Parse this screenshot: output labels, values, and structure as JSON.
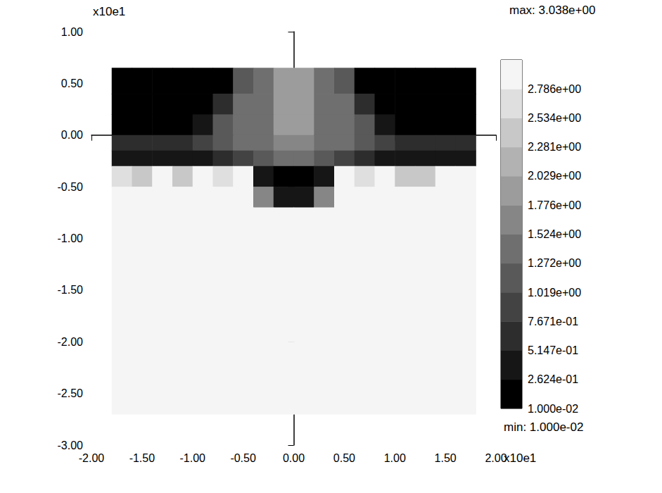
{
  "chart_data": {
    "type": "heatmap",
    "x_label": "x10e1",
    "y_label": "x10e1",
    "xlim": [
      -2,
      2
    ],
    "xticks": [
      {
        "value": -2,
        "label": "-2.00"
      },
      {
        "value": -1.5,
        "label": "-1.50"
      },
      {
        "value": -1,
        "label": "-1.00"
      },
      {
        "value": -0.5,
        "label": "-0.50"
      },
      {
        "value": 0,
        "label": "0.00"
      },
      {
        "value": 0.5,
        "label": "0.50"
      },
      {
        "value": 1,
        "label": "1.00"
      },
      {
        "value": 1.5,
        "label": "1.50"
      },
      {
        "value": 2,
        "label": "2.00"
      }
    ],
    "ylim": [
      -3,
      1
    ],
    "yticks": [
      {
        "value": 1,
        "label": "1.00"
      },
      {
        "value": 0.5,
        "label": "0.50"
      },
      {
        "value": 0,
        "label": "0.00"
      },
      {
        "value": -0.5,
        "label": "-0.50"
      },
      {
        "value": -1,
        "label": "-1.00"
      },
      {
        "value": -1.5,
        "label": "-1.50"
      },
      {
        "value": -2,
        "label": "-2.00"
      },
      {
        "value": -2.5,
        "label": "-2.50"
      },
      {
        "value": -3,
        "label": "-3.00"
      }
    ],
    "grid": false,
    "x_edges": [
      -1.8,
      -1.6,
      -1.4,
      -1.2,
      -1.0,
      -0.8,
      -0.6,
      -0.4,
      -0.2,
      0.0,
      0.2,
      0.4,
      0.6,
      0.8,
      1.0,
      1.2,
      1.4,
      1.6,
      1.8
    ],
    "y_edges": [
      0.65,
      0.4,
      0.2,
      0.0,
      -0.15,
      -0.3,
      -0.5,
      -0.7,
      -1.0,
      -1.5,
      -2.0,
      -2.7
    ],
    "cells": [
      [
        0.01,
        0.01,
        0.01,
        0.01,
        0.01,
        0.01,
        1.2,
        1.4,
        1.8,
        1.8,
        1.4,
        1.2,
        0.01,
        0.01,
        0.01,
        0.01,
        0.01,
        0.01
      ],
      [
        0.01,
        0.01,
        0.01,
        0.01,
        0.01,
        0.6,
        1.3,
        1.4,
        1.8,
        1.8,
        1.4,
        1.3,
        0.6,
        0.01,
        0.01,
        0.01,
        0.01,
        0.01
      ],
      [
        0.01,
        0.01,
        0.01,
        0.01,
        0.5,
        1.2,
        1.3,
        1.4,
        1.8,
        1.8,
        1.4,
        1.3,
        1.2,
        0.5,
        0.01,
        0.01,
        0.01,
        0.01
      ],
      [
        0.6,
        0.6,
        0.6,
        0.6,
        0.9,
        1.2,
        1.3,
        1.3,
        1.7,
        1.7,
        1.3,
        1.3,
        1.2,
        0.9,
        0.6,
        0.6,
        0.6,
        0.6
      ],
      [
        0.4,
        0.4,
        0.4,
        0.4,
        0.4,
        0.6,
        1.0,
        1.1,
        1.5,
        1.5,
        1.1,
        1.0,
        0.6,
        0.4,
        0.4,
        0.4,
        0.4,
        0.4
      ],
      [
        2.7,
        2.4,
        2.9,
        2.5,
        2.9,
        2.6,
        2.9,
        0.3,
        0.2,
        0.2,
        0.3,
        2.9,
        2.6,
        2.9,
        2.5,
        2.4,
        2.9,
        2.9
      ],
      [
        2.9,
        2.8,
        2.95,
        2.8,
        2.95,
        2.95,
        2.95,
        1.6,
        0.3,
        0.3,
        1.6,
        2.95,
        2.95,
        2.95,
        2.8,
        2.8,
        2.95,
        2.95
      ],
      [
        2.95,
        2.95,
        3.0,
        3.0,
        3.0,
        3.0,
        3.0,
        3.0,
        3.0,
        3.0,
        3.0,
        3.0,
        3.0,
        3.0,
        3.0,
        3.0,
        2.95,
        2.95
      ],
      [
        2.9,
        2.95,
        3.0,
        3.0,
        3.0,
        3.0,
        3.0,
        3.0,
        3.0,
        3.0,
        3.0,
        3.0,
        3.0,
        3.0,
        3.0,
        3.0,
        2.95,
        2.9
      ],
      [
        2.8,
        2.85,
        2.95,
        3.0,
        3.0,
        3.0,
        3.0,
        3.0,
        3.0,
        3.0,
        3.0,
        3.0,
        3.0,
        3.0,
        3.0,
        2.95,
        2.85,
        2.8
      ],
      [
        2.8,
        2.8,
        2.8,
        2.8,
        2.85,
        2.85,
        2.85,
        2.85,
        2.85,
        2.85,
        2.85,
        2.85,
        2.85,
        2.85,
        2.8,
        2.8,
        2.8,
        2.8
      ]
    ],
    "colorbar": {
      "range": [
        0.01,
        3.038
      ],
      "ticks": [
        {
          "value": 0.01,
          "label": "1.000e-02"
        },
        {
          "value": 0.2624,
          "label": "2.624e-01"
        },
        {
          "value": 0.5147,
          "label": "5.147e-01"
        },
        {
          "value": 0.7671,
          "label": "7.671e-01"
        },
        {
          "value": 1.019,
          "label": "1.019e+00"
        },
        {
          "value": 1.272,
          "label": "1.272e+00"
        },
        {
          "value": 1.524,
          "label": "1.524e+00"
        },
        {
          "value": 1.776,
          "label": "1.776e+00"
        },
        {
          "value": 2.029,
          "label": "2.029e+00"
        },
        {
          "value": 2.281,
          "label": "2.281e+00"
        },
        {
          "value": 2.534,
          "label": "2.534e+00"
        },
        {
          "value": 2.786,
          "label": "2.786e+00"
        }
      ]
    },
    "annotations": [
      "max: 3.038e+00",
      "min: 1.000e-02"
    ]
  }
}
